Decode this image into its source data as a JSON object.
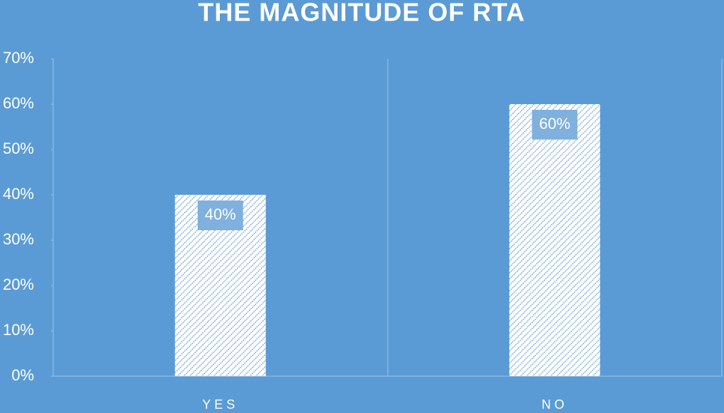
{
  "chart_data": {
    "type": "bar",
    "title": "THE MAGNITUDE OF RTA",
    "categories": [
      "YES",
      "NO"
    ],
    "values": [
      40,
      60
    ],
    "value_labels": [
      "40%",
      "60%"
    ],
    "color": "#ffffff",
    "ylim": [
      0,
      70
    ],
    "yticks": [
      {
        "value": 0,
        "label": "0%"
      },
      {
        "value": 10,
        "label": "10%"
      },
      {
        "value": 20,
        "label": "20%"
      },
      {
        "value": 30,
        "label": "30%"
      },
      {
        "value": 40,
        "label": "40%"
      },
      {
        "value": 50,
        "label": "50%"
      },
      {
        "value": 60,
        "label": "60%"
      },
      {
        "value": 70,
        "label": "70%"
      }
    ]
  }
}
